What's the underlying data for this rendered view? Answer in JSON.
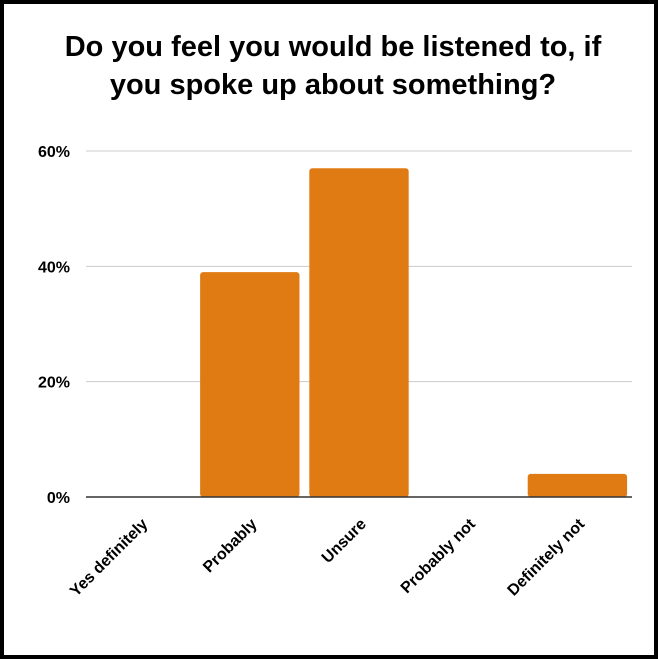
{
  "chart_data": {
    "type": "bar",
    "title_lines": [
      "Do you feel you would be listened to, if",
      "you spoke up about something?"
    ],
    "categories": [
      "Yes definitely",
      "Probably",
      "Unsure",
      "Probably not",
      "Definitely not"
    ],
    "values": [
      0,
      39,
      57,
      0,
      4
    ],
    "y_ticks": [
      "0%",
      "20%",
      "40%",
      "60%"
    ],
    "ylim": [
      0,
      60
    ],
    "grid": true,
    "bar_color": "#e07b14",
    "grid_color": "#cccccc",
    "axis_color": "#333333"
  }
}
